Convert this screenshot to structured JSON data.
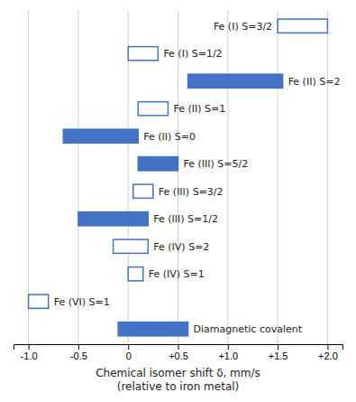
{
  "chart_data": {
    "type": "bar",
    "orientation": "horizontal",
    "categories": [
      "Fe (I) S=3/2",
      "Fe (I) S=1/2",
      "Fe (II) S=2",
      "Fe (II) S=1",
      "Fe (II) S=0",
      "Fe (III) S=5/2",
      "Fe (III) S=3/2",
      "Fe (III) S=1/2",
      "Fe (IV) S=2",
      "Fe (IV) S=1",
      "Fe (VI) S=1",
      "Diamagnetic covalent"
    ],
    "low": [
      1.5,
      0.0,
      0.6,
      0.1,
      -0.65,
      0.1,
      0.05,
      -0.5,
      -0.15,
      0.0,
      -1.0,
      -0.1
    ],
    "high": [
      2.0,
      0.3,
      1.55,
      0.4,
      0.1,
      0.5,
      0.25,
      0.2,
      0.2,
      0.15,
      -0.8,
      0.6
    ],
    "color": "#4472c4",
    "colors": [
      "#ffffff",
      "#ffffff",
      "#4472c4",
      "#ffffff",
      "#4472c4",
      "#4472c4",
      "#ffffff",
      "#4472c4",
      "#ffffff",
      "#ffffff",
      "#ffffff",
      "#4472c4"
    ],
    "xlabel": "Chemical isomer shift δ, mm/s\n(relative to iron metal)",
    "xlim": [
      -1.15,
      2.15
    ],
    "xticks": [
      {
        "value": -1.0,
        "label": "-1.0"
      },
      -0.5,
      0,
      {
        "value": 0.5,
        "label": "+0.5"
      },
      {
        "value": 1.0,
        "label": "+1.0"
      },
      {
        "value": 1.5,
        "label": "+1.5"
      },
      {
        "value": 2.0,
        "label": "+2.0"
      }
    ],
    "grid": true
  }
}
